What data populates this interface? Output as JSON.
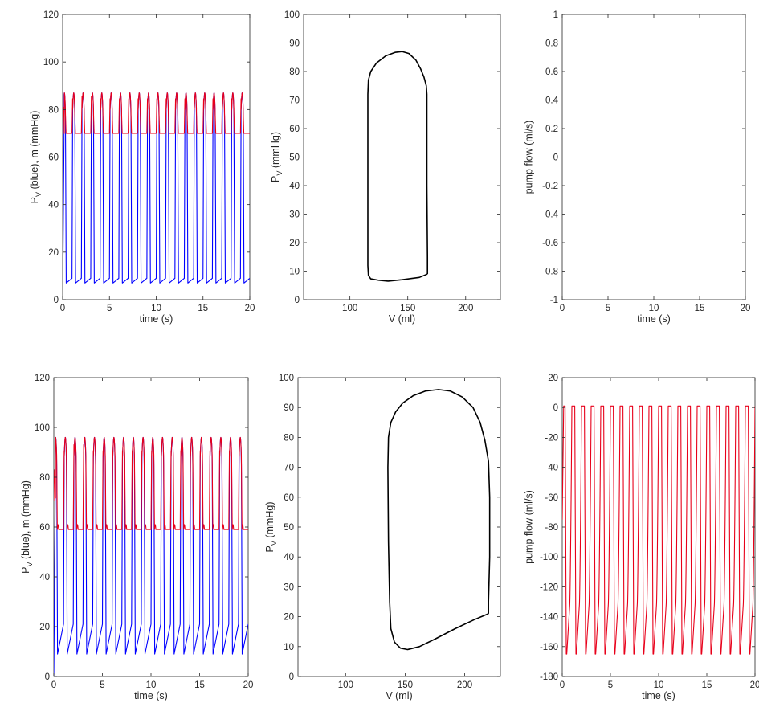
{
  "colors": {
    "blue": "#0000ff",
    "red": "#e8001a",
    "black": "#000000",
    "axis": "#262626"
  },
  "chart_data": [
    {
      "type": "line",
      "xlabel": "time (s)",
      "ylabel": "P_V (blue), m (mmHg)",
      "xlim": [
        0,
        20
      ],
      "ylim": [
        0,
        120
      ],
      "xticks": [
        0,
        5,
        10,
        15,
        20
      ],
      "yticks": [
        0,
        20,
        40,
        60,
        80,
        100,
        120
      ],
      "heart_period_s": 1,
      "series": [
        {
          "color": "blue",
          "waveform": "ventricular_pressure",
          "peak": 87,
          "trough": 7,
          "end_diastolic": 9,
          "initial": 0
        },
        {
          "color": "red",
          "waveform": "mean_pressure",
          "peak": 87,
          "floor": 70,
          "initial_spike": 81
        }
      ]
    },
    {
      "type": "line",
      "xlabel": "V (ml)",
      "ylabel": "P_V (mmHg)",
      "xlim": [
        60,
        230
      ],
      "ylim": [
        0,
        100
      ],
      "xticks": [
        100,
        150,
        200
      ],
      "yticks": [
        0,
        10,
        20,
        30,
        40,
        50,
        60,
        70,
        80,
        90,
        100
      ],
      "series": [
        {
          "color": "black",
          "closed": true,
          "x": [
            167,
            160,
            145,
            133,
            125,
            118,
            116,
            115.5,
            115.5,
            116,
            118,
            123,
            131,
            139,
            145,
            151,
            157,
            161,
            164,
            166,
            166.5,
            166.5,
            167,
            167
          ],
          "y": [
            9,
            7.8,
            7,
            6.5,
            6.8,
            7.3,
            8.5,
            12,
            72,
            77,
            80,
            83,
            85.5,
            86.7,
            87,
            86.3,
            84,
            81,
            78,
            75,
            72,
            40,
            15,
            9
          ]
        }
      ]
    },
    {
      "type": "line",
      "xlabel": "time (s)",
      "ylabel": "pump flow (ml/s)",
      "xlim": [
        0,
        20
      ],
      "ylim": [
        -1,
        1
      ],
      "xticks": [
        0,
        5,
        10,
        15,
        20
      ],
      "yticks": [
        -1,
        -0.8,
        -0.6,
        -0.4,
        -0.2,
        0,
        0.2,
        0.4,
        0.6,
        0.8,
        1
      ],
      "series": [
        {
          "color": "red",
          "x": [
            0,
            20
          ],
          "y": [
            0,
            0
          ]
        }
      ]
    },
    {
      "type": "line",
      "xlabel": "time (s)",
      "ylabel": "P_V (blue), m (mmHg)",
      "xlim": [
        0,
        20
      ],
      "ylim": [
        0,
        120
      ],
      "xticks": [
        0,
        5,
        10,
        15,
        20
      ],
      "yticks": [
        0,
        20,
        40,
        60,
        80,
        100,
        120
      ],
      "heart_period_s": 1,
      "series": [
        {
          "color": "blue",
          "waveform": "ventricular_pressure",
          "peak": 96,
          "trough": 9,
          "end_diastolic": 21,
          "initial": 0
        },
        {
          "color": "red",
          "waveform": "mean_pressure",
          "peak": 96,
          "floor": 59,
          "dip_peak": 61,
          "initial_spike": 83
        }
      ]
    },
    {
      "type": "line",
      "xlabel": "V (ml)",
      "ylabel": "P_V (mmHg)",
      "xlim": [
        60,
        230
      ],
      "ylim": [
        0,
        100
      ],
      "xticks": [
        100,
        150,
        200
      ],
      "yticks": [
        0,
        10,
        20,
        30,
        40,
        50,
        60,
        70,
        80,
        90,
        100
      ],
      "series": [
        {
          "color": "black",
          "closed": true,
          "x": [
            220,
            208,
            192,
            175,
            162,
            152,
            146,
            141,
            138,
            137,
            136,
            135.5,
            136,
            138,
            142,
            148,
            157,
            167,
            178,
            188,
            198,
            207,
            213,
            217,
            220,
            221,
            221,
            220,
            220
          ],
          "y": [
            21,
            19,
            16,
            12.5,
            10,
            9,
            9.5,
            11.5,
            16,
            25,
            45,
            70,
            80,
            85,
            88.5,
            91.5,
            94,
            95.5,
            96,
            95.5,
            93.5,
            90,
            85,
            79,
            72,
            60,
            40,
            25,
            21
          ]
        }
      ]
    },
    {
      "type": "line",
      "xlabel": "time (s)",
      "ylabel": "pump flow (ml/s)",
      "xlim": [
        0,
        20
      ],
      "ylim": [
        -180,
        20
      ],
      "xticks": [
        0,
        5,
        10,
        15,
        20
      ],
      "yticks": [
        -180,
        -160,
        -140,
        -120,
        -100,
        -80,
        -60,
        -40,
        -20,
        0,
        20
      ],
      "heart_period_s": 1,
      "series": [
        {
          "color": "red",
          "waveform": "pump_flow",
          "peak": 1,
          "trough": -165,
          "initial": -75
        }
      ]
    }
  ]
}
